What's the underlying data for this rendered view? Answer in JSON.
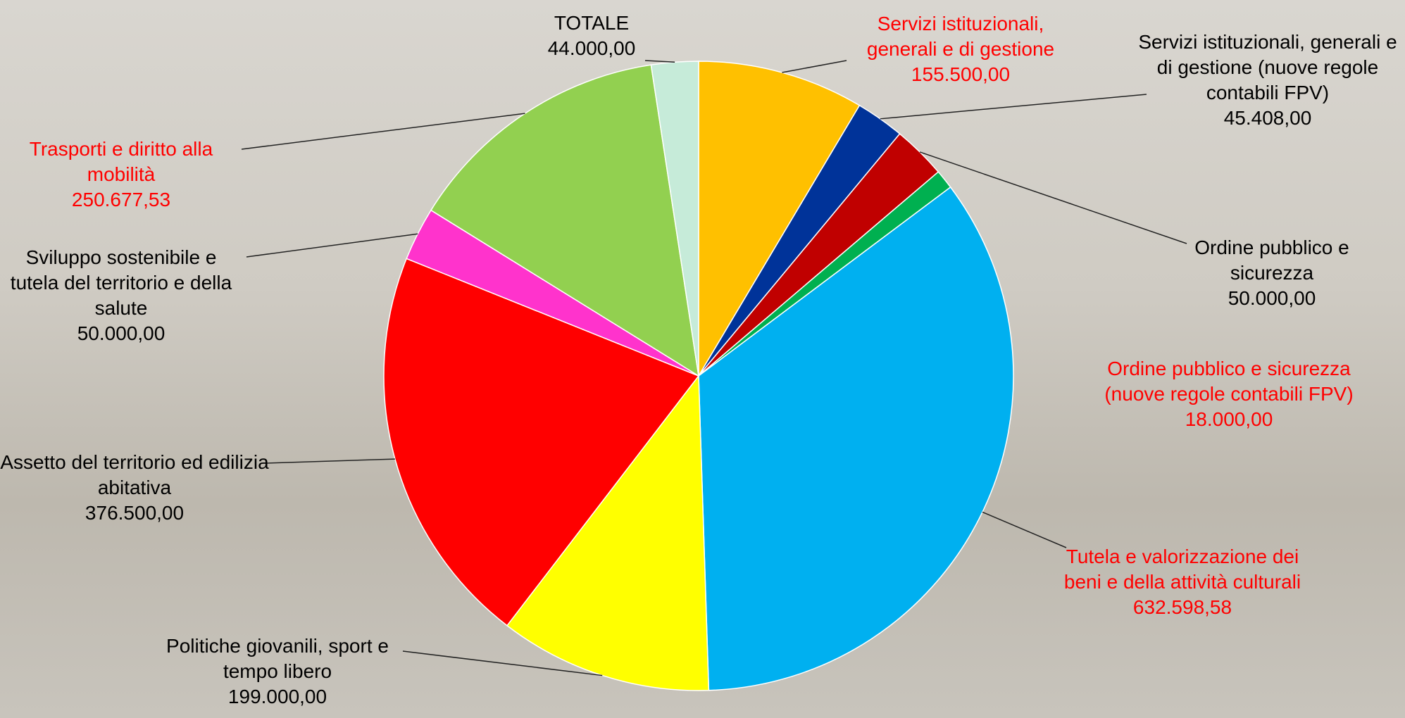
{
  "chart_data": {
    "type": "pie",
    "categories": [
      "Servizi istituzionali, generali e di gestione",
      "Servizi istituzionali, generali e di gestione (nuove regole contabili FPV)",
      "Ordine pubblico e sicurezza",
      "Ordine pubblico e sicurezza  (nuove regole contabili FPV)",
      "Tutela e valorizzazione dei beni e della attività culturali",
      "Politiche giovanili, sport e tempo libero",
      "Assetto del territorio ed edilizia abitativa",
      "Sviluppo sostenibile e tutela del territorio e della salute",
      "Trasporti e diritto alla mobilità",
      "TOTALE"
    ],
    "values": [
      155500,
      45408,
      50000,
      18000,
      632598.58,
      199000,
      376500,
      50000,
      250677.53,
      44000
    ],
    "value_labels": [
      "155.500,00",
      "45.408,00",
      "50.000,00",
      "18.000,00",
      "632.598,58",
      "199.000,00",
      "376.500,00",
      "50.000,00",
      "250.677,53",
      "44.000,00"
    ],
    "colors": [
      "#FFC000",
      "#003399",
      "#C00000",
      "#00B050",
      "#00B0F0",
      "#FFFF00",
      "#FF0000",
      "#FF33CC",
      "#92D050",
      "#C6EBD9"
    ],
    "label_colors": [
      "#FF0000",
      "#000000",
      "#000000",
      "#FF0000",
      "#FF0000",
      "#000000",
      "#000000",
      "#000000",
      "#FF0000",
      "#000000"
    ]
  }
}
